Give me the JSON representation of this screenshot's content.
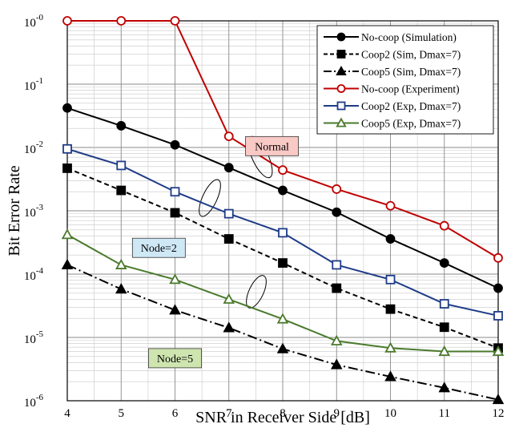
{
  "chart_data": {
    "type": "line",
    "title": "",
    "xlabel": "SNR in Receiver Side [dB]",
    "ylabel": "Bit Error Rate",
    "x": [
      4,
      5,
      6,
      7,
      8,
      9,
      10,
      11,
      12
    ],
    "xlim": [
      4,
      12
    ],
    "ylim": [
      1e-06,
      1
    ],
    "yscale": "log",
    "grid": true,
    "legend_position": "top-right",
    "x_tick_labels": [
      "4",
      "5",
      "6",
      "7",
      "8",
      "9",
      "10",
      "11",
      "12"
    ],
    "y_ticks": [
      {
        "base": "10",
        "exp": "-0"
      },
      {
        "base": "10",
        "exp": "-1"
      },
      {
        "base": "10",
        "exp": "-2"
      },
      {
        "base": "10",
        "exp": "-3"
      },
      {
        "base": "10",
        "exp": "-4"
      },
      {
        "base": "10",
        "exp": "-5"
      },
      {
        "base": "10",
        "exp": "-6"
      }
    ],
    "series": [
      {
        "name": "No-coop (Simulation)",
        "color": "#000000",
        "dash": "solid",
        "marker": "circle",
        "filled": true,
        "values": [
          0.042,
          0.022,
          0.011,
          0.0048,
          0.0021,
          0.00095,
          0.00036,
          0.00015,
          6e-05
        ]
      },
      {
        "name": "Coop2 (Sim, Dmax=7)",
        "color": "#000000",
        "dash": "dashed",
        "marker": "square",
        "filled": true,
        "values": [
          0.0047,
          0.0021,
          0.00093,
          0.00036,
          0.00015,
          6e-05,
          2.8e-05,
          1.45e-05,
          6.8e-06
        ]
      },
      {
        "name": "Coop5 (Sim, Dmax=7)",
        "color": "#000000",
        "dash": "dashdot",
        "marker": "triangle",
        "filled": true,
        "values": [
          0.00014,
          5.8e-05,
          2.7e-05,
          1.42e-05,
          6.6e-06,
          3.7e-06,
          2.4e-06,
          1.6e-06,
          1.04e-06
        ]
      },
      {
        "name": "No-coop (Experiment)",
        "color": "#c00000",
        "dash": "solid",
        "marker": "circle",
        "filled": false,
        "values": [
          1.0,
          1.0,
          1.0,
          0.015,
          0.0044,
          0.0022,
          0.0012,
          0.00058,
          0.00018
        ]
      },
      {
        "name": "Coop2 (Exp, Dmax=7)",
        "color": "#1f3c88",
        "dash": "solid",
        "marker": "square",
        "filled": false,
        "values": [
          0.0095,
          0.0052,
          0.002,
          0.0009,
          0.00045,
          0.00014,
          8.2e-05,
          3.4e-05,
          2.2e-05
        ]
      },
      {
        "name": "Coop5 (Exp, Dmax=7)",
        "color": "#4a7a2c",
        "dash": "solid",
        "marker": "triangle",
        "filled": false,
        "values": [
          0.00042,
          0.00014,
          8.2e-05,
          4e-05,
          1.95e-05,
          8.8e-06,
          6.8e-06,
          6e-06,
          6e-06
        ]
      }
    ],
    "annotations": [
      {
        "text": "Normal",
        "fill": "#f9c9c6",
        "x": 7.8,
        "y": 0.0105
      },
      {
        "text": "Node=2",
        "fill": "#cfe8f6",
        "x": 5.7,
        "y": 0.00026
      },
      {
        "text": "Node=5",
        "fill": "#cfe5b0",
        "x": 6.0,
        "y": 4.7e-06
      }
    ]
  }
}
